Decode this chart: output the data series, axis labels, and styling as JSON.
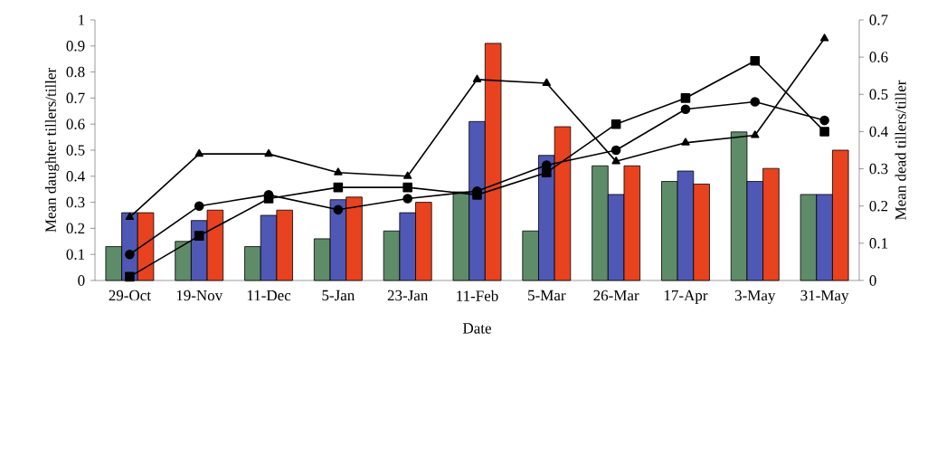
{
  "chart_data": {
    "type": "bar",
    "xlabel": "Date",
    "ylabel": "Mean daughter tillers/tiller",
    "y2label": "Mean dead tillers/tiller",
    "categories": [
      "29-Oct",
      "19-Nov",
      "11-Dec",
      "5-Jan",
      "23-Jan",
      "11-Feb",
      "5-Mar",
      "26-Mar",
      "17-Apr",
      "3-May",
      "31-May"
    ],
    "series": [
      {
        "color": "#5e8c68",
        "values": [
          0.13,
          0.15,
          0.13,
          0.16,
          0.19,
          0.34,
          0.19,
          0.44,
          0.38,
          0.57,
          0.33
        ]
      },
      {
        "color": "#4f58b4",
        "values": [
          0.26,
          0.23,
          0.25,
          0.31,
          0.26,
          0.61,
          0.48,
          0.33,
          0.42,
          0.38,
          0.33
        ]
      },
      {
        "color": "#e8431e",
        "values": [
          0.26,
          0.27,
          0.27,
          0.32,
          0.3,
          0.91,
          0.59,
          0.44,
          0.37,
          0.43,
          0.5
        ]
      },
      {
        "type": "line",
        "axis": "y2",
        "marker": "triangle",
        "color": "#000000",
        "values": [
          0.17,
          0.34,
          0.34,
          0.29,
          0.28,
          0.54,
          0.53,
          0.32,
          0.37,
          0.39,
          0.65
        ]
      },
      {
        "type": "line",
        "axis": "y2",
        "marker": "square",
        "color": "#000000",
        "values": [
          0.01,
          0.12,
          0.22,
          0.25,
          0.25,
          0.23,
          0.29,
          0.42,
          0.49,
          0.59,
          0.4
        ]
      },
      {
        "type": "line",
        "axis": "y2",
        "marker": "circle",
        "color": "#000000",
        "values": [
          0.07,
          0.2,
          0.23,
          0.19,
          0.22,
          0.24,
          0.31,
          0.35,
          0.46,
          0.48,
          0.43
        ]
      }
    ],
    "ylim": [
      0,
      1
    ],
    "yticks": [
      0,
      0.1,
      0.2,
      0.3,
      0.4,
      0.5,
      0.6,
      0.7,
      0.8,
      0.9,
      1
    ],
    "y2lim": [
      0,
      0.7
    ],
    "y2ticks": [
      0,
      0.1,
      0.2,
      0.3,
      0.4,
      0.5,
      0.6,
      0.7
    ]
  }
}
